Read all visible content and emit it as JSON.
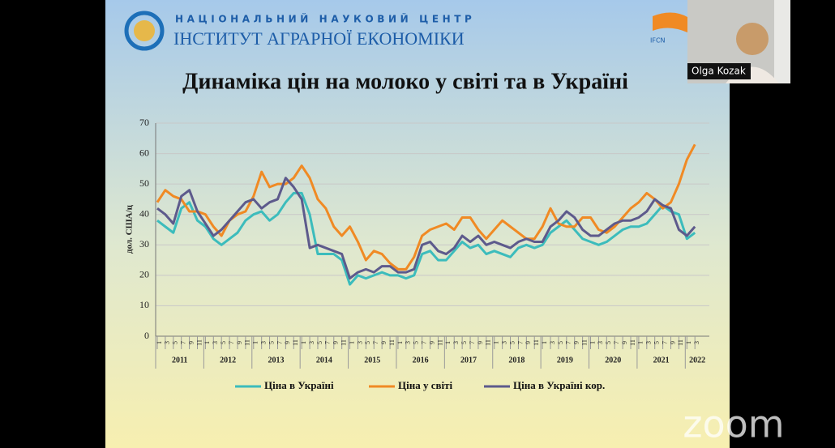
{
  "header": {
    "org_top": "НАЦІОНАЛЬНИЙ НАУКОВИЙ ЦЕНТР",
    "org_name": "ІНСТИТУТ АГРАРНОЇ ЕКОНОМІКИ",
    "partner_logo": "IFCN"
  },
  "participant": {
    "name": "Olga Kozak"
  },
  "watermark": "zoom",
  "chart_data": {
    "type": "line",
    "title": "Динаміка цін на молоко у світі та в Україні",
    "y_label": "дол. США/ц",
    "categories": [
      "1",
      "3",
      "5",
      "7",
      "9",
      "11",
      "1",
      "3",
      "5",
      "7",
      "9",
      "11",
      "1",
      "3",
      "5",
      "7",
      "9",
      "11",
      "1",
      "3",
      "5",
      "7",
      "9",
      "11",
      "1",
      "3",
      "5",
      "7",
      "9",
      "11",
      "1",
      "3",
      "5",
      "7",
      "9",
      "11",
      "1",
      "3",
      "5",
      "7",
      "9",
      "11",
      "1",
      "3",
      "5",
      "7",
      "9",
      "11",
      "1",
      "3",
      "5",
      "7",
      "9",
      "11",
      "1",
      "3",
      "5",
      "7",
      "9",
      "11",
      "1",
      "3",
      "5",
      "7",
      "9",
      "11",
      "1",
      "3"
    ],
    "year_labels": [
      "2011",
      "2012",
      "2013",
      "2014",
      "2015",
      "2016",
      "2017",
      "2018",
      "2019",
      "2020",
      "2021",
      "2022"
    ],
    "series": [
      {
        "name": "Ціна в Україні",
        "color": "#3cbcbc",
        "values": [
          38,
          36,
          34,
          42,
          44,
          38,
          36,
          32,
          30,
          32,
          34,
          38,
          40,
          41,
          38,
          40,
          44,
          47,
          47,
          40,
          27,
          27,
          27,
          25,
          17,
          20,
          19,
          20,
          21,
          20,
          20,
          19,
          20,
          27,
          28,
          25,
          25,
          28,
          31,
          29,
          30,
          27,
          28,
          27,
          26,
          29,
          30,
          29,
          30,
          34,
          36,
          38,
          35,
          32,
          31,
          30,
          31,
          33,
          35,
          36,
          36,
          37,
          40,
          43,
          41,
          40,
          32,
          34
        ]
      },
      {
        "name": "Ціна у світі",
        "color": "#f08a24",
        "values": [
          44,
          48,
          46,
          45,
          41,
          41,
          40,
          36,
          33,
          38,
          40,
          41,
          46,
          54,
          49,
          50,
          50,
          52,
          56,
          52,
          45,
          42,
          36,
          33,
          36,
          31,
          25,
          28,
          27,
          24,
          22,
          22,
          26,
          33,
          35,
          36,
          37,
          35,
          39,
          39,
          35,
          32,
          35,
          38,
          36,
          34,
          32,
          32,
          36,
          42,
          37,
          36,
          36,
          39,
          39,
          35,
          34,
          36,
          39,
          42,
          44,
          47,
          45,
          42,
          44,
          50,
          58,
          63
        ]
      },
      {
        "name": "Ціна в Україні кор.",
        "color": "#5d5a8c",
        "values": [
          42,
          40,
          37,
          46,
          48,
          41,
          37,
          33,
          35,
          38,
          41,
          44,
          45,
          42,
          44,
          45,
          52,
          49,
          45,
          29,
          30,
          29,
          28,
          27,
          19,
          21,
          22,
          21,
          23,
          23,
          21,
          21,
          22,
          30,
          31,
          28,
          27,
          29,
          33,
          31,
          33,
          30,
          31,
          30,
          29,
          31,
          32,
          31,
          31,
          36,
          38,
          41,
          39,
          35,
          33,
          33,
          35,
          37,
          38,
          38,
          39,
          41,
          45,
          43,
          42,
          35,
          33,
          36
        ]
      }
    ],
    "ylim": [
      0,
      70
    ],
    "yticks": [
      0,
      10,
      20,
      30,
      40,
      50,
      60,
      70
    ],
    "grid": true
  }
}
